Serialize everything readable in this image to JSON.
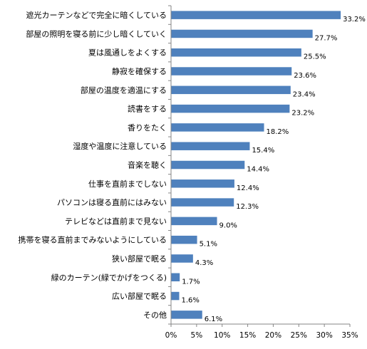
{
  "chart_data": {
    "type": "bar",
    "orientation": "horizontal",
    "title": "",
    "xlabel": "",
    "ylabel": "",
    "xlim": [
      0,
      35
    ],
    "tick_values": [
      0,
      5,
      10,
      15,
      20,
      25,
      30,
      35
    ],
    "tick_labels": [
      "0%",
      "5%",
      "10%",
      "15%",
      "20%",
      "25%",
      "30%",
      "35%"
    ],
    "grid": false,
    "legend": "none",
    "bar_color": "#4f81bd",
    "categories": [
      "遮光カーテンなどで完全に暗くしている",
      "部屋の照明を寝る前に少し暗くしていく",
      "夏は風通しをよくする",
      "静寂を確保する",
      "部屋の温度を適温にする",
      "読書をする",
      "香りをたく",
      "湿度や温度に注意している",
      "音楽を聴く",
      "仕事を直前までしない",
      "パソコンは寝る直前にはみない",
      "テレビなどは直前まで見ない",
      "携帯を寝る直前までみないようにしている",
      "狭い部屋で眠る",
      "緑のカーテン(緑でかげをつくる)",
      "広い部屋で眠る",
      "その他"
    ],
    "values": [
      33.2,
      27.7,
      25.5,
      23.6,
      23.4,
      23.2,
      18.2,
      15.4,
      14.4,
      12.4,
      12.3,
      9.0,
      5.1,
      4.3,
      1.7,
      1.6,
      6.1
    ],
    "value_labels": [
      "33.2%",
      "27.7%",
      "25.5%",
      "23.6%",
      "23.4%",
      "23.2%",
      "18.2%",
      "15.4%",
      "14.4%",
      "12.4%",
      "12.3%",
      "9.0%",
      "5.1%",
      "4.3%",
      "1.7%",
      "1.6%",
      "6.1%"
    ]
  }
}
